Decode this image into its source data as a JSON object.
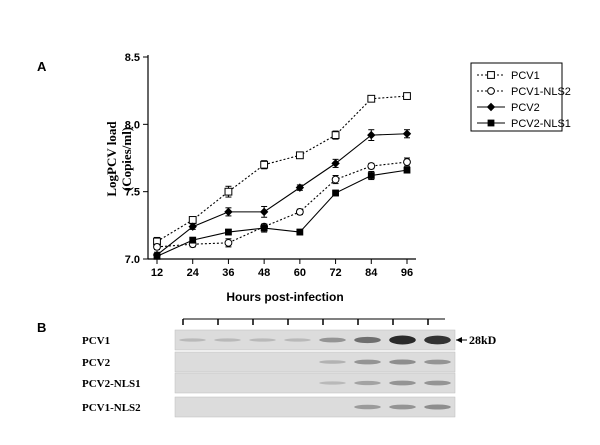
{
  "panel_a": {
    "label": "A",
    "chart_data": {
      "type": "line",
      "xlabel": "Hours post-infection",
      "ylabel_line1": "LogPCV load",
      "ylabel_line2": "(Copies/ml)",
      "x": [
        12,
        24,
        36,
        48,
        60,
        72,
        84,
        96
      ],
      "x_tick_labels": [
        "12",
        "24",
        "36",
        "48",
        "60",
        "72",
        "84",
        "96"
      ],
      "y_ticks": [
        7.0,
        7.5,
        8.0,
        8.5
      ],
      "y_tick_labels": [
        "7.0",
        "7.5",
        "8.0",
        "8.5"
      ],
      "ylim": [
        7.0,
        8.5
      ],
      "legend_position": "top-right",
      "series": [
        {
          "name": "PCV1",
          "values": [
            7.13,
            7.29,
            7.5,
            7.7,
            7.77,
            7.92,
            8.19,
            8.21
          ],
          "errors": [
            0.03,
            0.02,
            0.04,
            0.03,
            0.02,
            0.03,
            0.02,
            0.02
          ],
          "marker": "open-square",
          "line": "dotted"
        },
        {
          "name": "PCV1-NLS2",
          "values": [
            7.09,
            7.11,
            7.12,
            7.24,
            7.35,
            7.59,
            7.69,
            7.72
          ],
          "errors": [
            0.02,
            0.02,
            0.03,
            0.02,
            0.02,
            0.03,
            0.02,
            0.03
          ],
          "marker": "open-circle",
          "line": "dotted"
        },
        {
          "name": "PCV2",
          "values": [
            7.03,
            7.24,
            7.35,
            7.35,
            7.53,
            7.71,
            7.92,
            7.93
          ],
          "errors": [
            0.02,
            0.02,
            0.03,
            0.04,
            0.02,
            0.03,
            0.04,
            0.03
          ],
          "marker": "filled-diamond",
          "line": "solid"
        },
        {
          "name": "PCV2-NLS1",
          "values": [
            7.02,
            7.14,
            7.2,
            7.23,
            7.2,
            7.49,
            7.62,
            7.66
          ],
          "errors": [
            0.02,
            0.02,
            0.02,
            0.03,
            0.02,
            0.02,
            0.03,
            0.02
          ],
          "marker": "filled-square",
          "line": "solid"
        }
      ]
    }
  },
  "panel_b": {
    "label": "B",
    "marker_label": "28kD",
    "lanes": 8,
    "rows": [
      {
        "name": "PCV1",
        "band_intensity": [
          0.05,
          0.05,
          0.05,
          0.05,
          0.3,
          0.55,
          1.0,
          0.95
        ]
      },
      {
        "name": "PCV2",
        "band_intensity": [
          0.0,
          0.0,
          0.0,
          0.0,
          0.1,
          0.3,
          0.35,
          0.3
        ]
      },
      {
        "name": "PCV2-NLS1",
        "band_intensity": [
          0.0,
          0.0,
          0.0,
          0.0,
          0.05,
          0.2,
          0.3,
          0.3
        ]
      },
      {
        "name": "PCV1-NLS2",
        "band_intensity": [
          0.0,
          0.0,
          0.0,
          0.0,
          0.0,
          0.25,
          0.3,
          0.35
        ]
      }
    ]
  },
  "colors": {
    "line": "#000000",
    "blot_background": "#dcdcdc",
    "band": "#2a2a2a"
  }
}
